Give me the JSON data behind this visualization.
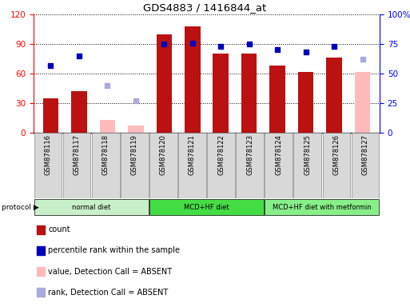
{
  "title": "GDS4883 / 1416844_at",
  "samples": [
    "GSM878116",
    "GSM878117",
    "GSM878118",
    "GSM878119",
    "GSM878120",
    "GSM878121",
    "GSM878122",
    "GSM878123",
    "GSM878124",
    "GSM878125",
    "GSM878126",
    "GSM878127"
  ],
  "count_values": [
    35,
    42,
    null,
    null,
    100,
    108,
    80,
    80,
    68,
    62,
    76,
    null
  ],
  "count_absent_values": [
    null,
    null,
    13,
    7,
    null,
    null,
    null,
    null,
    null,
    null,
    null,
    62
  ],
  "percentile_values": [
    57,
    65,
    null,
    null,
    75,
    76,
    73,
    75,
    70,
    68,
    73,
    null
  ],
  "percentile_absent_values": [
    null,
    null,
    40,
    27,
    null,
    null,
    null,
    null,
    null,
    null,
    null,
    62
  ],
  "left_ylim": [
    0,
    120
  ],
  "right_ylim": [
    0,
    100
  ],
  "left_yticks": [
    0,
    30,
    60,
    90,
    120
  ],
  "right_yticks": [
    0,
    25,
    50,
    75,
    100
  ],
  "right_yticklabels": [
    "0",
    "25",
    "50",
    "75",
    "100%"
  ],
  "protocols": [
    {
      "label": "normal diet",
      "start": 0,
      "end": 4,
      "color": "#c8f0c8"
    },
    {
      "label": "MCD+HF diet",
      "start": 4,
      "end": 8,
      "color": "#44dd44"
    },
    {
      "label": "MCD+HF diet with metformin",
      "start": 8,
      "end": 12,
      "color": "#88ee88"
    }
  ],
  "bar_color": "#bb1111",
  "bar_absent_color": "#ffbbbb",
  "dot_color": "#0000bb",
  "dot_absent_color": "#aaaadd",
  "legend_items": [
    {
      "color": "#bb1111",
      "label": "count"
    },
    {
      "color": "#0000bb",
      "label": "percentile rank within the sample"
    },
    {
      "color": "#ffbbbb",
      "label": "value, Detection Call = ABSENT"
    },
    {
      "color": "#aaaadd",
      "label": "rank, Detection Call = ABSENT"
    }
  ]
}
